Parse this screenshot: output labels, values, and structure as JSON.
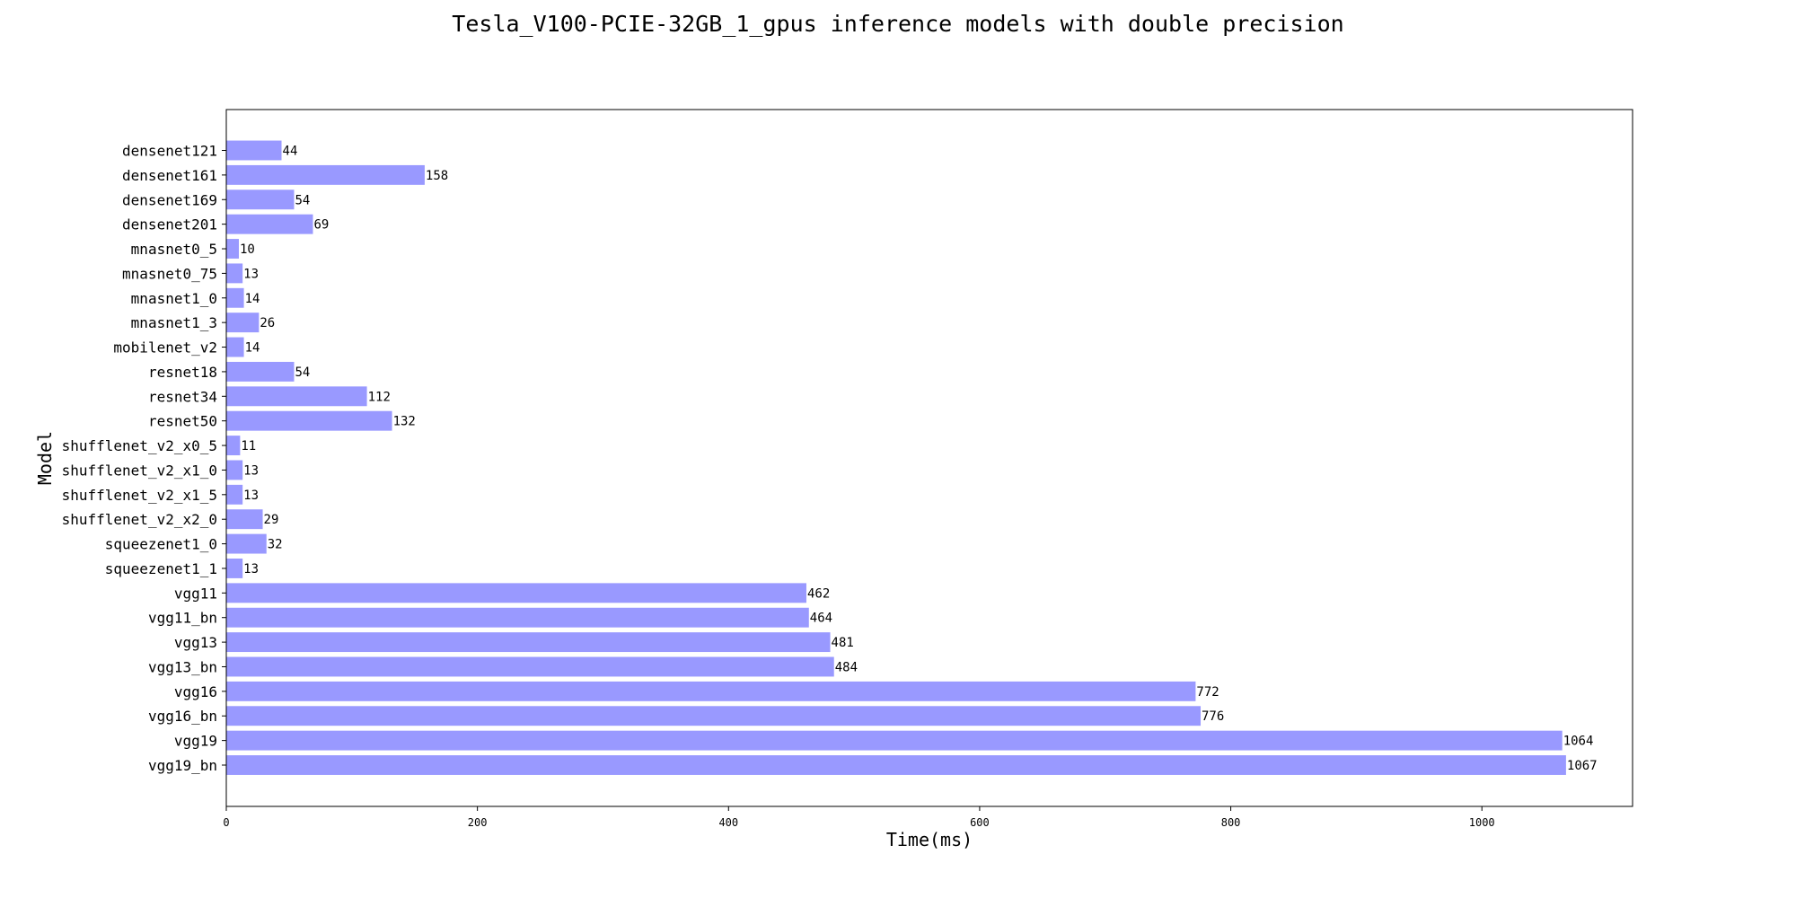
{
  "chart_data": {
    "type": "bar",
    "orientation": "horizontal",
    "title": "Tesla_V100-PCIE-32GB_1_gpus inference models with double precision",
    "xlabel": "Time(ms)",
    "ylabel": "Model",
    "xlim": [
      0,
      1120
    ],
    "xticks": [
      0,
      200,
      400,
      600,
      800,
      1000
    ],
    "grid": false,
    "bar_color": "#9999ff",
    "categories": [
      "densenet121",
      "densenet161",
      "densenet169",
      "densenet201",
      "mnasnet0_5",
      "mnasnet0_75",
      "mnasnet1_0",
      "mnasnet1_3",
      "mobilenet_v2",
      "resnet18",
      "resnet34",
      "resnet50",
      "shufflenet_v2_x0_5",
      "shufflenet_v2_x1_0",
      "shufflenet_v2_x1_5",
      "shufflenet_v2_x2_0",
      "squeezenet1_0",
      "squeezenet1_1",
      "vgg11",
      "vgg11_bn",
      "vgg13",
      "vgg13_bn",
      "vgg16",
      "vgg16_bn",
      "vgg19",
      "vgg19_bn"
    ],
    "values": [
      44,
      158,
      54,
      69,
      10,
      13,
      14,
      26,
      14,
      54,
      112,
      132,
      11,
      13,
      13,
      29,
      32,
      13,
      462,
      464,
      481,
      484,
      772,
      776,
      1064,
      1067
    ]
  }
}
